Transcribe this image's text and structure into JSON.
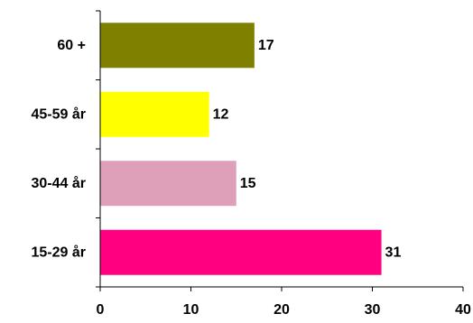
{
  "chart_data": {
    "type": "bar",
    "orientation": "horizontal",
    "title": "",
    "xlabel": "",
    "ylabel": "",
    "categories": [
      "60 +",
      "45-59 år",
      "30-44 år",
      "15-29 år"
    ],
    "values": [
      17,
      12,
      15,
      31
    ],
    "data_labels": [
      "17",
      "12",
      "15",
      "31"
    ],
    "colors": [
      "#808000",
      "#ffff00",
      "#dda0b8",
      "#ff0080"
    ],
    "xlim": [
      0,
      40
    ],
    "xticks": [
      0,
      10,
      20,
      30,
      40
    ],
    "xtick_labels": [
      "0",
      "10",
      "20",
      "30",
      "40"
    ],
    "grid": false,
    "legend": "none"
  }
}
